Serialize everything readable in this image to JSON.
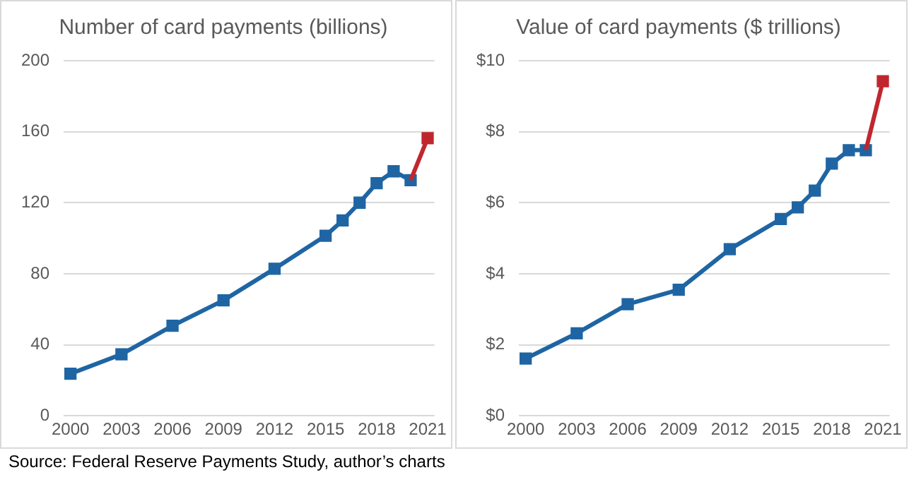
{
  "chart_data": [
    {
      "type": "line",
      "title": "Number of card payments (billions)",
      "xlim": [
        1999.6,
        2021.4
      ],
      "xticks": [
        2000,
        2003,
        2006,
        2009,
        2012,
        2015,
        2018,
        2021
      ],
      "ylim": [
        0,
        200
      ],
      "yticks": [
        0,
        40,
        80,
        120,
        160,
        200
      ],
      "grid": "y",
      "legend": false,
      "marker": "square",
      "line_style": "solid",
      "series": [
        {
          "color": "#1f65a3",
          "x": [
            2000,
            2003,
            2006,
            2009,
            2012,
            2015,
            2016,
            2017,
            2018,
            2019,
            2020
          ],
          "values": [
            23.7,
            34.6,
            50.7,
            65,
            82.8,
            101.4,
            110,
            120,
            131,
            137.7,
            132.7
          ]
        },
        {
          "color": "#c0272d",
          "x": [
            2020,
            2021
          ],
          "values": [
            132.7,
            156.3
          ]
        }
      ]
    },
    {
      "type": "line",
      "title": "Value of card payments ($ trillions)",
      "xlim": [
        1999.6,
        2021.4
      ],
      "xticks": [
        2000,
        2003,
        2006,
        2009,
        2012,
        2015,
        2018,
        2021
      ],
      "ylim": [
        0,
        10
      ],
      "yticks": [
        {
          "value": 0,
          "label": "$0"
        },
        {
          "value": 2,
          "label": "$2"
        },
        {
          "value": 4,
          "label": "$4"
        },
        {
          "value": 6,
          "label": "$6"
        },
        {
          "value": 8,
          "label": "$8"
        },
        {
          "value": 10,
          "label": "$10"
        }
      ],
      "grid": "y",
      "legend": false,
      "marker": "square",
      "line_style": "solid",
      "annotations": [
        "Source: Federal Reserve Payments Study, author’s charts"
      ],
      "series": [
        {
          "color": "#1f65a3",
          "x": [
            2000,
            2003,
            2006,
            2009,
            2012,
            2015,
            2016,
            2017,
            2018,
            2019,
            2020
          ],
          "values": [
            1.61,
            2.32,
            3.14,
            3.55,
            4.69,
            5.54,
            5.87,
            6.34,
            7.1,
            7.48,
            7.48
          ]
        },
        {
          "color": "#c0272d",
          "x": [
            2020,
            2021
          ],
          "values": [
            7.48,
            9.42
          ]
        }
      ]
    }
  ]
}
